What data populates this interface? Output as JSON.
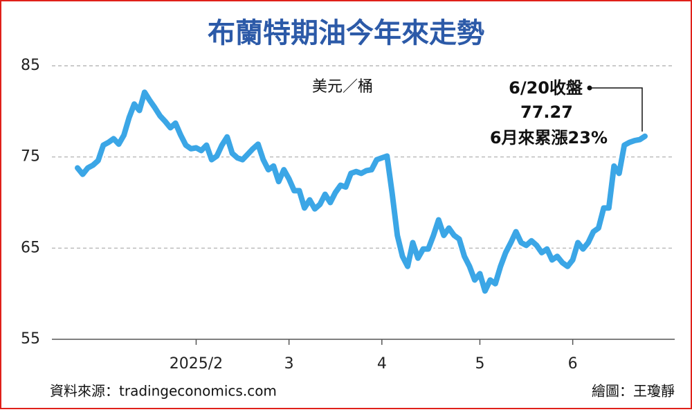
{
  "chart_data": {
    "type": "line",
    "title": "布蘭特期油今年來走勢",
    "unit_label": "美元／桶",
    "annotation": [
      "6/20收盤",
      "6月來累漲23%"
    ],
    "source": "資料來源：tradingeconomics.com",
    "credit": "繪圖：王瓊靜",
    "color": "#3ba6e6",
    "grid": true,
    "ylim": [
      55,
      85
    ],
    "yticks": [
      55,
      65,
      75,
      85
    ],
    "categories": [
      null,
      null,
      null,
      null,
      null,
      null,
      null,
      null,
      null,
      null,
      null,
      null,
      null,
      null,
      null,
      null,
      null,
      null,
      null,
      null,
      null,
      null,
      null,
      "2025/2",
      null,
      null,
      null,
      null,
      null,
      null,
      null,
      null,
      null,
      null,
      null,
      null,
      null,
      null,
      null,
      null,
      null,
      "3",
      null,
      null,
      null,
      null,
      null,
      null,
      null,
      null,
      null,
      null,
      null,
      null,
      null,
      null,
      null,
      null,
      null,
      "4",
      null,
      null,
      null,
      null,
      null,
      null,
      null,
      null,
      null,
      null,
      null,
      null,
      null,
      null,
      null,
      null,
      null,
      null,
      "5",
      null,
      null,
      null,
      null,
      null,
      null,
      null,
      null,
      null,
      null,
      null,
      null,
      null,
      null,
      null,
      null,
      null,
      "6",
      null,
      null,
      null,
      null,
      null,
      null,
      null,
      null,
      null,
      null,
      null,
      null,
      null,
      null
    ],
    "values": [
      73.8,
      73.1,
      73.8,
      74.1,
      74.6,
      76.3,
      76.6,
      77.0,
      76.4,
      77.4,
      79.3,
      80.8,
      80.1,
      82.1,
      81.2,
      80.4,
      79.5,
      78.9,
      78.2,
      78.7,
      77.4,
      76.3,
      75.9,
      76.0,
      75.7,
      76.3,
      74.7,
      75.1,
      76.3,
      77.2,
      75.4,
      74.9,
      74.7,
      75.3,
      75.9,
      76.4,
      74.7,
      73.6,
      74.0,
      72.3,
      73.6,
      72.6,
      71.3,
      71.3,
      69.4,
      70.3,
      69.3,
      69.8,
      70.9,
      70.0,
      71.1,
      71.9,
      71.7,
      73.2,
      73.4,
      73.2,
      73.5,
      73.6,
      74.7,
      74.9,
      75.1,
      71.0,
      66.4,
      64.1,
      63.0,
      65.6,
      63.9,
      64.9,
      64.9,
      66.4,
      68.1,
      66.4,
      67.2,
      66.4,
      66.0,
      64.1,
      63.0,
      61.5,
      62.2,
      60.3,
      61.5,
      61.1,
      63.0,
      64.5,
      65.6,
      66.8,
      65.6,
      65.3,
      65.8,
      65.3,
      64.5,
      64.9,
      63.7,
      64.1,
      63.4,
      63.0,
      63.7,
      65.6,
      64.9,
      65.6,
      66.8,
      67.2,
      69.4,
      69.4,
      74.0,
      73.2,
      76.3,
      76.6,
      76.8,
      76.9,
      77.27
    ]
  }
}
